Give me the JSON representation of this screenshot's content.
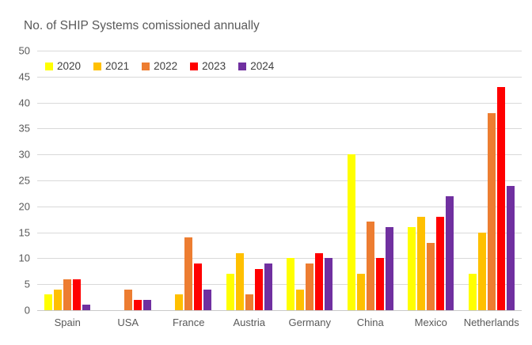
{
  "chart_data": {
    "type": "bar",
    "title": "No. of SHIP Systems comissioned annually",
    "categories": [
      "Spain",
      "USA",
      "France",
      "Austria",
      "Germany",
      "China",
      "Mexico",
      "Netherlands"
    ],
    "series": [
      {
        "name": "2020",
        "color": "#FFFF00",
        "values": [
          3,
          0,
          0,
          7,
          10,
          30,
          16,
          7
        ]
      },
      {
        "name": "2021",
        "color": "#FFC000",
        "values": [
          4,
          0,
          3,
          11,
          4,
          7,
          18,
          15
        ]
      },
      {
        "name": "2022",
        "color": "#ED7D31",
        "values": [
          6,
          4,
          14,
          3,
          9,
          17,
          13,
          38
        ]
      },
      {
        "name": "2023",
        "color": "#FF0000",
        "values": [
          6,
          2,
          9,
          8,
          11,
          10,
          18,
          43
        ]
      },
      {
        "name": "2024",
        "color": "#7030A0",
        "values": [
          1,
          2,
          4,
          9,
          10,
          16,
          22,
          24
        ]
      }
    ],
    "xlabel": "",
    "ylabel": "",
    "ylim": [
      0,
      50
    ],
    "ytick_step": 5,
    "grid": true,
    "legend_position": "top-inside"
  },
  "style": {
    "gridline_color": "#d9d9d9",
    "text_color": "#595959",
    "legend_text_color": "#404040",
    "background": "#ffffff"
  }
}
